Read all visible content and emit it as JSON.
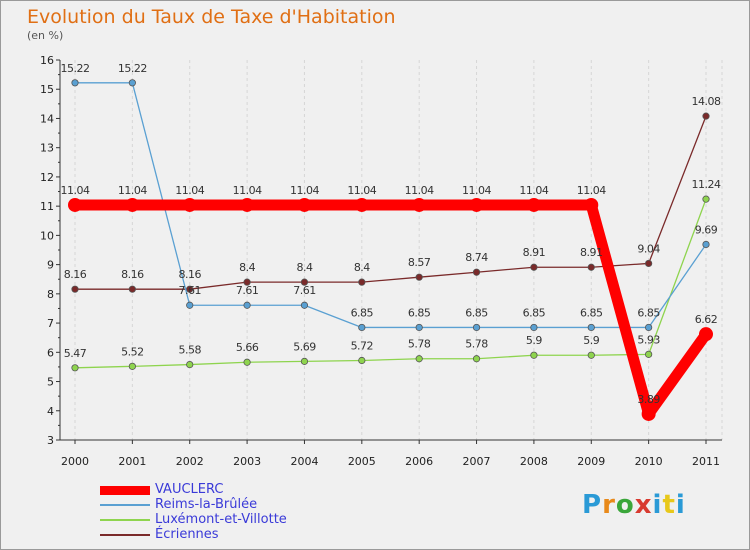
{
  "header": {
    "title": "Evolution du Taux de Taxe d'Habitation",
    "unit": "(en %)"
  },
  "logo": {
    "text": "Proxiti",
    "letter_colors": [
      "#2a9ad6",
      "#e8891a",
      "#3aa63a",
      "#d83a30",
      "#2a9ad6",
      "#e8c81a",
      "#2a9ad6"
    ]
  },
  "chart_data": {
    "type": "line",
    "title": "Evolution du Taux de Taxe d'Habitation",
    "ylabel": "(en %)",
    "xlabel": "",
    "x": [
      "2000",
      "2001",
      "2002",
      "2003",
      "2004",
      "2005",
      "2006",
      "2007",
      "2008",
      "2009",
      "2010",
      "2011"
    ],
    "ylim": [
      3,
      16
    ],
    "yticks": [
      "3",
      "4",
      "5",
      "6",
      "7",
      "8",
      "9",
      "10",
      "11",
      "12",
      "13",
      "14",
      "15",
      "16"
    ],
    "grid": "vertical dashed",
    "legend_position": "bottom-left",
    "series": [
      {
        "name": "VAUCLERC",
        "color": "#ff0000",
        "values": [
          11.04,
          11.04,
          11.04,
          11.04,
          11.04,
          11.04,
          11.04,
          11.04,
          11.04,
          11.04,
          3.89,
          6.62
        ],
        "labels": [
          "11.04",
          "11.04",
          "11.04",
          "11.04",
          "11.04",
          "11.04",
          "11.04",
          "11.04",
          "11.04",
          "11.04",
          "3.89",
          "6.62"
        ]
      },
      {
        "name": "Reims-la-Brûlée",
        "color": "#5aa0d2",
        "values": [
          15.22,
          15.22,
          7.61,
          7.61,
          7.61,
          6.85,
          6.85,
          6.85,
          6.85,
          6.85,
          6.85,
          9.69
        ],
        "labels": [
          "15.22",
          "15.22",
          "7.61",
          "7.61",
          "7.61",
          "6.85",
          "6.85",
          "6.85",
          "6.85",
          "6.85",
          "6.85",
          "9.69"
        ]
      },
      {
        "name": "Luxémont-et-Villotte",
        "color": "#8ed44e",
        "values": [
          5.47,
          5.52,
          5.58,
          5.66,
          5.69,
          5.72,
          5.78,
          5.78,
          5.9,
          5.9,
          5.93,
          11.24
        ],
        "labels": [
          "5.47",
          "5.52",
          "5.58",
          "5.66",
          "5.69",
          "5.72",
          "5.78",
          "5.78",
          "5.9",
          "5.9",
          "5.93",
          "11.24"
        ]
      },
      {
        "name": "Écriennes",
        "color": "#7a2a2a",
        "values": [
          8.16,
          8.16,
          8.16,
          8.4,
          8.4,
          8.4,
          8.57,
          8.74,
          8.91,
          8.91,
          9.04,
          14.08
        ],
        "labels": [
          "8.16",
          "8.16",
          "8.16",
          "8.4",
          "8.4",
          "8.4",
          "8.57",
          "8.74",
          "8.91",
          "8.91",
          "9.04",
          "14.08"
        ]
      }
    ]
  }
}
